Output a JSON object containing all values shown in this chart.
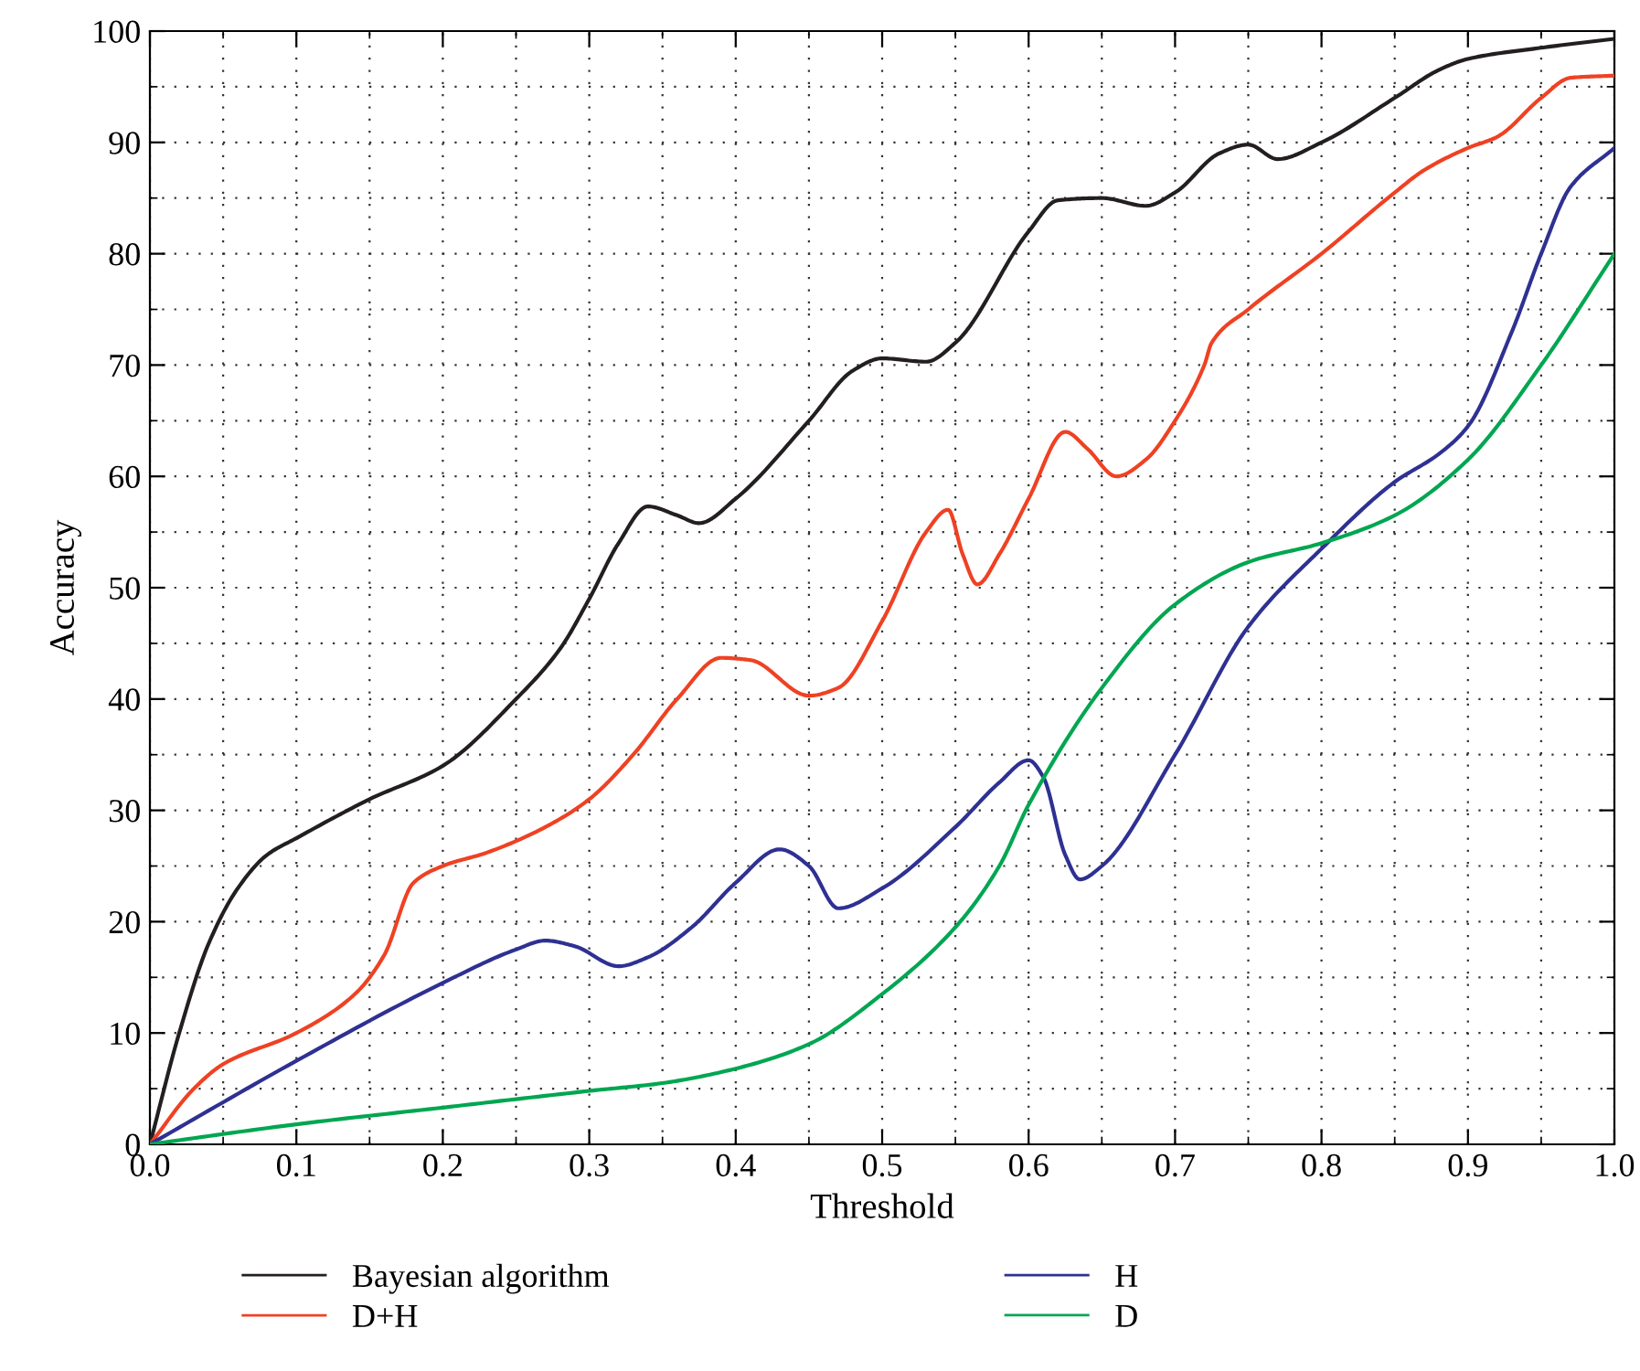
{
  "chart_data": {
    "type": "line",
    "xlabel": "Threshold",
    "ylabel": "Accuracy",
    "xlim": [
      0,
      1
    ],
    "ylim": [
      0,
      100
    ],
    "xticks": [
      {
        "value": 0,
        "label": "0.0"
      },
      0.1,
      0.2,
      0.3,
      0.4,
      0.5,
      0.6,
      0.7,
      0.8,
      0.9,
      {
        "value": 1,
        "label": "1.0"
      }
    ],
    "yticks": [
      0,
      10,
      20,
      30,
      40,
      50,
      60,
      70,
      80,
      90,
      100
    ],
    "grid": true,
    "legend": "bottom",
    "marker": "none",
    "line_style": "solid",
    "series": [
      {
        "name": "Bayesian algorithm",
        "color": "#231f20",
        "x": [
          0,
          0.02,
          0.04,
          0.06,
          0.08,
          0.1,
          0.15,
          0.2,
          0.25,
          0.28,
          0.3,
          0.32,
          0.34,
          0.36,
          0.375,
          0.4,
          0.45,
          0.48,
          0.5,
          0.53,
          0.55,
          0.6,
          0.62,
          0.65,
          0.68,
          0.7,
          0.73,
          0.75,
          0.77,
          0.8,
          0.85,
          0.88,
          0.9,
          0.95,
          1.0
        ],
        "values": [
          0,
          10,
          18,
          23,
          26,
          27.5,
          31,
          34,
          40,
          44.5,
          49,
          54,
          57.3,
          56.5,
          55.8,
          58,
          65,
          69.5,
          70.6,
          70.3,
          72,
          82,
          84.8,
          85,
          84.3,
          85.5,
          89,
          89.8,
          88.5,
          90,
          94,
          96.5,
          97.5,
          98.5,
          99.3
        ]
      },
      {
        "name": "D+H",
        "color": "#ef4123",
        "x": [
          0,
          0.03,
          0.05,
          0.1,
          0.14,
          0.16,
          0.18,
          0.2,
          0.23,
          0.27,
          0.3,
          0.33,
          0.36,
          0.39,
          0.41,
          0.45,
          0.47,
          0.5,
          0.53,
          0.545,
          0.555,
          0.565,
          0.58,
          0.6,
          0.625,
          0.64,
          0.66,
          0.68,
          0.7,
          0.72,
          0.725,
          0.75,
          0.8,
          0.85,
          0.87,
          0.9,
          0.92,
          0.95,
          0.97,
          1.0
        ],
        "values": [
          0,
          5,
          7.2,
          10,
          13.5,
          17,
          23.5,
          25,
          26.2,
          28.5,
          31,
          35,
          40,
          43.7,
          43.5,
          40.3,
          41,
          47,
          55,
          57,
          53,
          50.3,
          53,
          58,
          64,
          62.5,
          60,
          61.5,
          65,
          70,
          72,
          75,
          80,
          85.5,
          87.5,
          89.5,
          90.5,
          94,
          95.8,
          96
        ]
      },
      {
        "name": "H",
        "color": "#2e3192",
        "x": [
          0,
          0.1,
          0.2,
          0.25,
          0.27,
          0.29,
          0.32,
          0.34,
          0.37,
          0.4,
          0.43,
          0.45,
          0.47,
          0.5,
          0.55,
          0.58,
          0.6,
          0.61,
          0.625,
          0.635,
          0.65,
          0.7,
          0.75,
          0.8,
          0.85,
          0.88,
          0.9,
          0.93,
          0.95,
          0.97,
          1.0
        ],
        "values": [
          0,
          7.5,
          14.5,
          17.5,
          18.3,
          17.8,
          16,
          16.8,
          19.5,
          23.5,
          26.5,
          25,
          21.2,
          23,
          28.5,
          32.5,
          34.5,
          33,
          26,
          23.8,
          25,
          35,
          46.5,
          53.5,
          59.5,
          62,
          64.5,
          73,
          80,
          86,
          89.5
        ]
      },
      {
        "name": "D",
        "color": "#00a651",
        "x": [
          0,
          0.1,
          0.2,
          0.3,
          0.35,
          0.4,
          0.45,
          0.5,
          0.55,
          0.58,
          0.6,
          0.65,
          0.7,
          0.75,
          0.8,
          0.85,
          0.9,
          0.95,
          1.0
        ],
        "values": [
          0,
          1.8,
          3.3,
          4.8,
          5.5,
          6.8,
          9,
          13.5,
          19.5,
          25,
          30.5,
          41,
          48.5,
          52.3,
          54,
          56.5,
          61.5,
          70,
          80
        ]
      }
    ]
  }
}
